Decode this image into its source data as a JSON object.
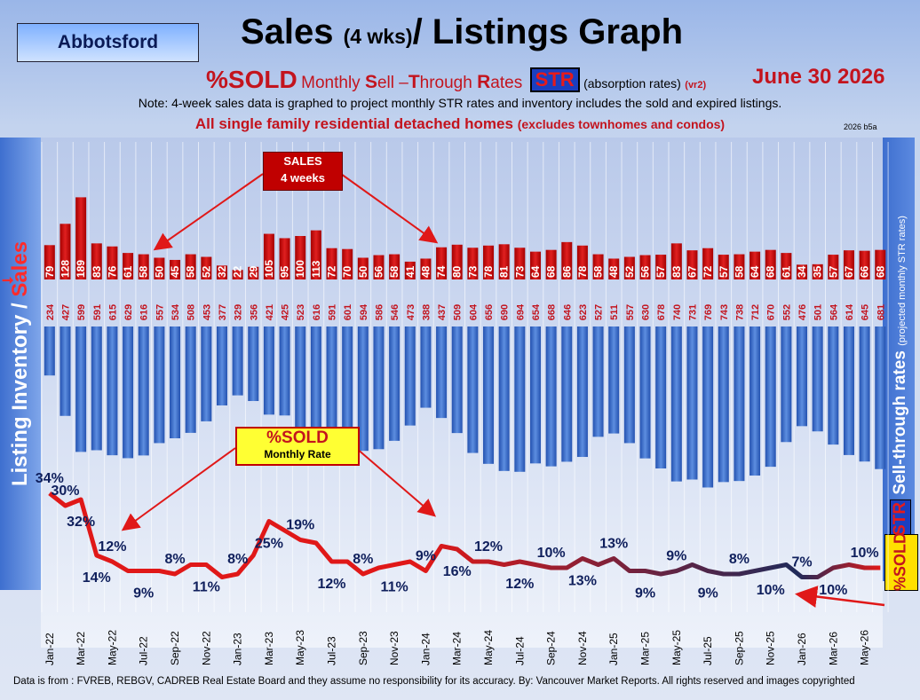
{
  "header": {
    "city": "Abbotsford",
    "title_main": "Sales",
    "title_small": "(4 wks)",
    "title_rest": "/ Listings Graph",
    "pct_sold": "%SOLD",
    "monthly_prefix": "Monthly ",
    "s_cap": "S",
    "ell": "ell –",
    "t_cap": "T",
    "hrough": "hrough ",
    "r_cap": "R",
    "ates": "ates",
    "str": "STR",
    "absorption": "(absorption rates)",
    "version": "(vr2)",
    "date": "June  30  2026",
    "note": "Note: 4-week sales data is graphed to project monthly STR rates and inventory includes the sold and expired listings.",
    "note2_main": "All single family residential detached homes",
    "note2_small": "(excludes townhomes and condos)",
    "code": "2026 b5a"
  },
  "left_label": {
    "part1": "Listing Inventory / ",
    "part2": "Sales"
  },
  "right_label": {
    "str": "STR",
    "text": " Sell-through rates",
    "proj": "(projected monthly STR rates)"
  },
  "sold_label": "%SOLD",
  "callouts": {
    "sales_line1": "SALES",
    "sales_line2": "4  weeks",
    "sold_line1": "%SOLD",
    "sold_line2": "Monthly Rate"
  },
  "footer": "Data is from : FVREB, REBGV, CADREB Real Estate Board and they assume no responsibility for its accuracy. By: Vancouver Market Reports. All rights reserved and  images copyrighted",
  "colors": {
    "sales_bar": "#c00000",
    "inventory_bar": "#2f66c8",
    "str_line": "#e01818",
    "label_dark": "#0f1f5c"
  },
  "chart_data": {
    "type": "bar",
    "title": "Sales (4 wks)/ Listings Graph",
    "x_tick_labels": [
      "Jan-22",
      "Mar-22",
      "May-22",
      "Jul-22",
      "Sep-22",
      "Nov-22",
      "Jan-23",
      "Mar-23",
      "May-23",
      "Jul-23",
      "Sep-23",
      "Nov-23",
      "Jan-24",
      "Mar-24",
      "May-24",
      "Jul-24",
      "Sep-24",
      "Nov-24",
      "Jan-25",
      "Mar-25",
      "May-25",
      "Jul-25",
      "Sep-25",
      "Nov-25",
      "Jan-26",
      "Mar-26",
      "May-26"
    ],
    "series": [
      {
        "name": "Sales",
        "values": [
          79,
          128,
          189,
          83,
          76,
          61,
          58,
          50,
          45,
          58,
          52,
          32,
          22,
          29,
          105,
          95,
          100,
          113,
          72,
          70,
          50,
          56,
          58,
          41,
          48,
          74,
          80,
          73,
          78,
          81,
          73,
          64,
          68,
          86,
          78,
          58,
          48,
          52,
          56,
          57,
          83,
          67,
          72,
          57,
          58,
          64,
          68,
          61,
          34,
          35,
          57,
          67,
          66,
          68
        ]
      },
      {
        "name": "Listing Inventory",
        "values": [
          234,
          427,
          599,
          591,
          615,
          629,
          616,
          557,
          534,
          508,
          453,
          377,
          329,
          356,
          421,
          425,
          523,
          616,
          591,
          601,
          594,
          586,
          546,
          473,
          388,
          437,
          509,
          604,
          656,
          690,
          694,
          654,
          668,
          646,
          623,
          527,
          511,
          557,
          630,
          678,
          740,
          731,
          769,
          743,
          738,
          712,
          670,
          552,
          476,
          501,
          564,
          614,
          645,
          681
        ]
      },
      {
        "name": "%SOLD",
        "values": [
          34,
          30,
          32,
          14,
          12,
          9,
          9,
          9,
          8,
          11,
          11,
          7,
          8,
          14,
          25,
          22,
          19,
          18,
          12,
          12,
          8,
          10,
          11,
          12,
          9,
          17,
          16,
          12,
          12,
          11,
          12,
          11,
          10,
          10,
          13,
          11,
          13,
          9,
          9,
          8,
          9,
          11,
          9,
          8,
          8,
          9,
          10,
          11,
          7,
          7,
          10,
          11,
          10,
          10
        ]
      }
    ]
  }
}
